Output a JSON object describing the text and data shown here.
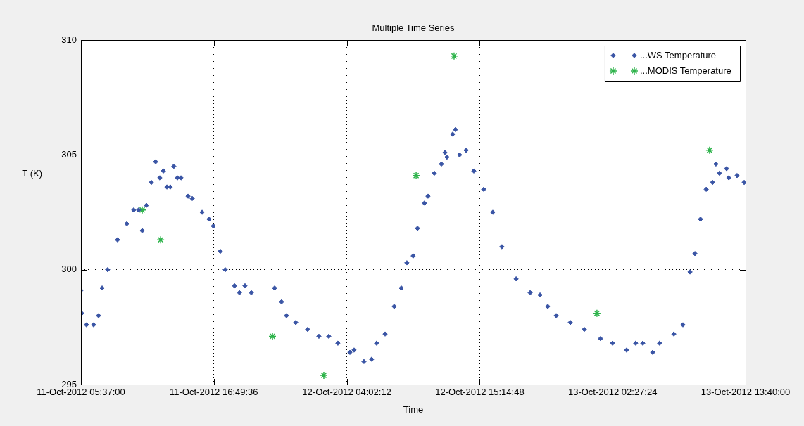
{
  "chart_data": {
    "type": "scatter",
    "title": "Multiple Time Series",
    "xlabel": "Time",
    "ylabel": "T (K)",
    "xlim": [
      "2012-10-11T05:37",
      "2012-10-13T13:40"
    ],
    "xticks": [
      {
        "value": "2012-10-11T05:37:00",
        "label": "11-Oct-2012 05:37:00"
      },
      {
        "value": "2012-10-11T16:49:36",
        "label": "11-Oct-2012 16:49:36"
      },
      {
        "value": "2012-10-12T04:02:12",
        "label": "12-Oct-2012 04:02:12"
      },
      {
        "value": "2012-10-12T15:14:48",
        "label": "12-Oct-2012 15:14:48"
      },
      {
        "value": "2012-10-13T02:27:24",
        "label": "13-Oct-2012 02:27:24"
      },
      {
        "value": "2012-10-13T13:40:00",
        "label": "13-Oct-2012 13:40:00"
      }
    ],
    "ylim": [
      295,
      310
    ],
    "yticks": [
      295,
      300,
      305,
      310
    ],
    "grid": true,
    "legend": "top right",
    "series": [
      {
        "name": "...WS Temperature",
        "color": "#3a55a5",
        "marker": "diamond",
        "x": [
          "2012-10-11T05:37",
          "2012-10-11T05:41",
          "2012-10-11T06:05",
          "2012-10-11T06:41",
          "2012-10-11T07:06",
          "2012-10-11T07:24",
          "2012-10-11T07:52",
          "2012-10-11T08:42",
          "2012-10-11T09:29",
          "2012-10-11T10:04",
          "2012-10-11T10:29",
          "2012-10-11T10:47",
          "2012-10-11T11:08",
          "2012-10-11T11:33",
          "2012-10-11T11:55",
          "2012-10-11T12:16",
          "2012-10-11T12:34",
          "2012-10-11T12:52",
          "2012-10-11T13:09",
          "2012-10-11T13:27",
          "2012-10-11T13:45",
          "2012-10-11T14:03",
          "2012-10-11T14:39",
          "2012-10-11T15:00",
          "2012-10-11T15:50",
          "2012-10-11T16:25",
          "2012-10-11T16:47",
          "2012-10-11T17:22",
          "2012-10-11T17:47",
          "2012-10-11T18:34",
          "2012-10-11T18:59",
          "2012-10-11T19:27",
          "2012-10-11T19:59",
          "2012-10-11T21:00",
          "2012-10-11T21:57",
          "2012-10-11T22:32",
          "2012-10-11T22:57",
          "2012-10-11T23:44",
          "2012-10-12T00:44",
          "2012-10-12T01:41",
          "2012-10-12T02:31",
          "2012-10-12T03:17",
          "2012-10-12T04:18",
          "2012-10-12T04:30",
          "2012-10-12T04:39",
          "2012-10-12T05:29",
          "2012-10-12T06:08",
          "2012-10-12T06:33",
          "2012-10-12T07:16",
          "2012-10-12T08:02",
          "2012-10-12T08:38",
          "2012-10-12T09:06",
          "2012-10-12T09:38",
          "2012-10-12T10:00",
          "2012-10-12T10:35",
          "2012-10-12T10:53",
          "2012-10-12T11:25",
          "2012-10-12T12:01",
          "2012-10-12T12:19",
          "2012-10-12T12:29",
          "2012-10-12T12:58",
          "2012-10-12T13:12",
          "2012-10-12T13:33",
          "2012-10-12T14:06",
          "2012-10-12T14:45",
          "2012-10-12T15:35",
          "2012-10-12T16:21",
          "2012-10-12T17:07",
          "2012-10-12T17:45",
          "2012-10-12T18:19",
          "2012-10-12T19:30",
          "2012-10-12T20:20",
          "2012-10-12T20:59",
          "2012-10-12T21:42",
          "2012-10-12T22:53",
          "2012-10-13T00:04",
          "2012-10-13T01:26",
          "2012-10-13T02:27",
          "2012-10-13T03:38",
          "2012-10-13T04:24",
          "2012-10-13T04:40",
          "2012-10-13T05:00",
          "2012-10-13T05:50",
          "2012-10-13T06:25",
          "2012-10-13T07:37",
          "2012-10-13T08:23",
          "2012-10-13T08:59",
          "2012-10-13T09:24",
          "2012-10-13T09:52",
          "2012-10-13T10:21",
          "2012-10-13T10:53",
          "2012-10-13T11:10",
          "2012-10-13T11:28",
          "2012-10-13T12:04",
          "2012-10-13T12:15",
          "2012-10-13T12:57",
          "2012-10-13T13:33"
        ],
        "values": [
          299.1,
          298.1,
          297.6,
          297.6,
          298.0,
          299.2,
          300.0,
          301.3,
          302.0,
          302.6,
          302.6,
          301.7,
          302.8,
          303.8,
          304.7,
          304.0,
          304.3,
          303.6,
          303.6,
          304.5,
          304.0,
          304.0,
          303.2,
          303.1,
          302.5,
          302.2,
          301.9,
          300.8,
          300.0,
          299.3,
          299.0,
          299.3,
          299.0,
          null,
          299.2,
          298.6,
          298.0,
          297.7,
          297.4,
          297.1,
          297.1,
          296.8,
          296.4,
          null,
          296.5,
          296.0,
          296.1,
          296.8,
          297.2,
          298.4,
          299.2,
          300.3,
          300.6,
          301.8,
          302.9,
          303.2,
          304.2,
          304.6,
          305.1,
          304.9,
          305.9,
          306.1,
          305.0,
          305.2,
          304.3,
          303.5,
          302.5,
          301.0,
          null,
          299.6,
          299.0,
          298.9,
          298.4,
          298.0,
          297.7,
          297.4,
          297.0,
          296.8,
          296.5,
          296.8,
          null,
          296.8,
          296.4,
          296.8,
          297.2,
          297.6,
          299.9,
          300.7,
          302.2,
          303.5,
          303.8,
          304.6,
          304.2,
          304.4,
          304.0,
          304.1,
          303.8
        ]
      },
      {
        "name": "...MODIS Temperature",
        "color": "#2db34a",
        "marker": "cross",
        "x": [
          "2012-10-11T10:47",
          "2012-10-11T12:20",
          "2012-10-11T21:46",
          "2012-10-12T02:06",
          "2012-10-12T09:53",
          "2012-10-12T13:05",
          "2012-10-13T01:08",
          "2012-10-13T10:38"
        ],
        "values": [
          302.6,
          301.3,
          297.1,
          295.4,
          304.1,
          309.3,
          298.1,
          305.2
        ]
      }
    ]
  }
}
